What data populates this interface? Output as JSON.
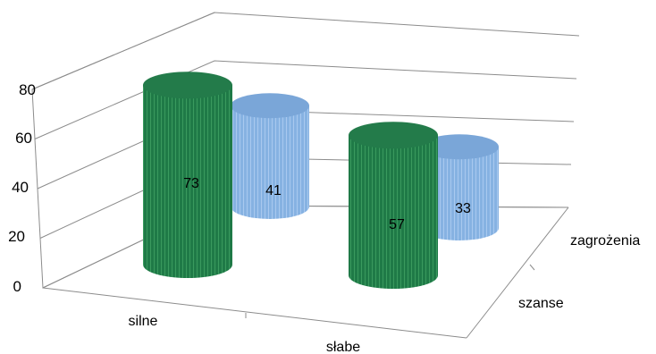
{
  "chart_data": {
    "type": "bar",
    "subtype": "3d-cylinder",
    "categories": [
      "silne",
      "słabe"
    ],
    "series": [
      {
        "name": "szanse",
        "values": [
          73,
          57
        ],
        "color": "#1f7a47"
      },
      {
        "name": "zagrożenia",
        "values": [
          41,
          33
        ],
        "color": "#8ab4e4"
      }
    ],
    "ylim": [
      0,
      80
    ],
    "yticks": [
      "0",
      "20",
      "40",
      "60",
      "80"
    ],
    "grid": true,
    "legend": "none",
    "data_labels": true
  }
}
